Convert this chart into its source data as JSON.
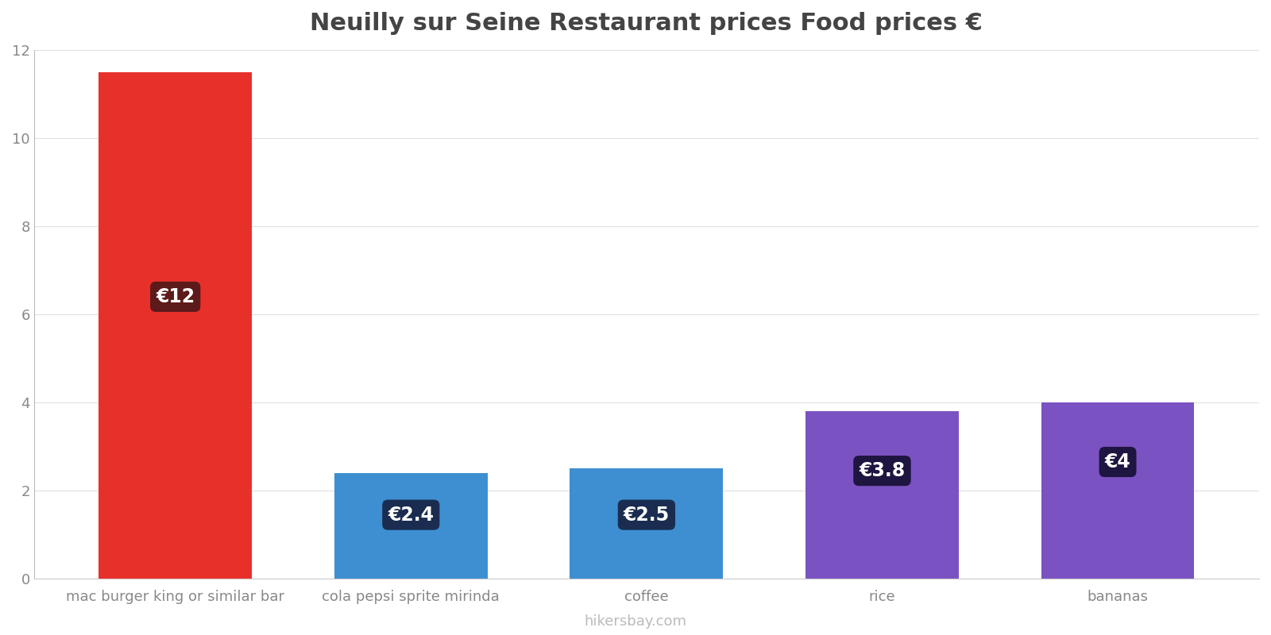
{
  "title": "Neuilly sur Seine Restaurant prices Food prices €",
  "categories": [
    "mac burger king or similar bar",
    "cola pepsi sprite mirinda",
    "coffee",
    "rice",
    "bananas"
  ],
  "values": [
    11.5,
    2.4,
    2.5,
    3.8,
    4.0
  ],
  "labels": [
    "€12",
    "€2.4",
    "€2.5",
    "€3.8",
    "€4"
  ],
  "bar_colors": [
    "#e8302a",
    "#3d8fd1",
    "#3d8fd1",
    "#7b52c1",
    "#7b52c1"
  ],
  "label_bg_colors": [
    "#5c1a1a",
    "#1a2d50",
    "#1a2d50",
    "#1e1540",
    "#1e1540"
  ],
  "ylim": [
    0,
    12
  ],
  "yticks": [
    0,
    2,
    4,
    6,
    8,
    10,
    12
  ],
  "watermark": "hikersbay.com",
  "background_color": "#ffffff",
  "grid_color": "#e0e0e0",
  "title_fontsize": 22,
  "tick_fontsize": 13,
  "label_fontsize": 17,
  "watermark_fontsize": 13,
  "label_y_positions": [
    6.4,
    1.45,
    1.45,
    2.45,
    2.65
  ],
  "bar_width": 0.65
}
